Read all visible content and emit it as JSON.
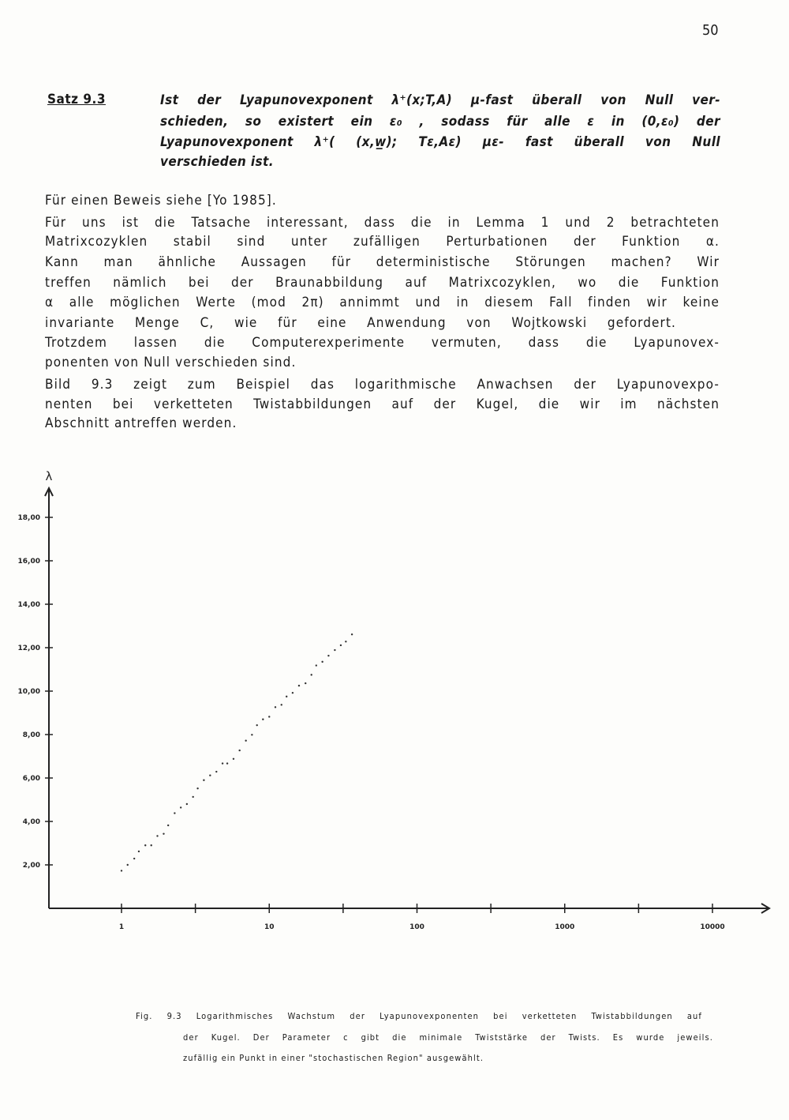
{
  "page_number": "50",
  "theorem": {
    "label": "Satz 9.3",
    "lines": [
      "Ist der Lyapunovexponent λ⁺(x;T,A) μ-fast überall von Null ver-",
      "schieden, so existert ein ε₀ , sodass für alle ε in (0,ε₀) der",
      "Lyapunovexponent λ⁺( (x,w̲); Tε,Aε)  με- fast überall von Null",
      "verschieden ist."
    ]
  },
  "body_lines": [
    "Für einen Beweis siehe [Yo 1985].",
    "Für uns ist die Tatsache interessant, dass die in Lemma 1 und 2 betrachteten",
    "Matrixcozyklen stabil sind unter zufälligen Perturbationen der Funktion α.",
    "Kann man ähnliche Aussagen für deterministische Störungen machen? Wir",
    "treffen nämlich bei der Braunabbildung auf Matrixcozyklen, wo die Funktion",
    "α alle möglichen Werte (mod 2π) annimmt und in diesem Fall finden wir keine",
    "invariante Menge C, wie für eine Anwendung von Wojtkowski gefordert.",
    "Trotzdem lassen die Computerexperimente vermuten, dass die Lyapunovex-",
    "ponenten von Null verschieden sind.",
    "Bild 9.3 zeigt zum Beispiel das logarithmische Anwachsen der Lyapunovexpo-",
    "nenten bei verketteten Twistabbildungen auf der Kugel, die wir im nächsten",
    "Abschnitt antreffen werden."
  ],
  "chart_data": {
    "type": "scatter",
    "ylabel": "λ",
    "xlabel": "",
    "x_scale": "log",
    "xlim": [
      0.55,
      18000
    ],
    "ylim": [
      0,
      19.4
    ],
    "grid": false,
    "x_ticks": [
      "1",
      "10",
      "100",
      "1000",
      "10000"
    ],
    "y_ticks": [
      "2,00",
      "4,00",
      "6,00",
      "8,00",
      "10,00",
      "12,00",
      "14,00",
      "16,00",
      "18,00"
    ],
    "y_tick_values": [
      2,
      4,
      6,
      8,
      10,
      12,
      14,
      16,
      18
    ],
    "x_tick_values": [
      1,
      10,
      100,
      1000,
      10000
    ],
    "points": [
      [
        1.0,
        1.73
      ],
      [
        1.1,
        2.0
      ],
      [
        1.22,
        2.29
      ],
      [
        1.31,
        2.62
      ],
      [
        1.45,
        2.9
      ],
      [
        1.59,
        2.9
      ],
      [
        1.75,
        3.33
      ],
      [
        1.93,
        3.43
      ],
      [
        2.07,
        3.82
      ],
      [
        2.29,
        4.38
      ],
      [
        2.52,
        4.64
      ],
      [
        2.77,
        4.8
      ],
      [
        3.05,
        5.13
      ],
      [
        3.28,
        5.52
      ],
      [
        3.61,
        5.9
      ],
      [
        3.98,
        6.12
      ],
      [
        4.39,
        6.29
      ],
      [
        4.83,
        6.67
      ],
      [
        5.2,
        6.67
      ],
      [
        5.73,
        6.88
      ],
      [
        6.3,
        7.27
      ],
      [
        6.95,
        7.72
      ],
      [
        7.64,
        7.99
      ],
      [
        8.26,
        8.43
      ],
      [
        9.07,
        8.7
      ],
      [
        10.0,
        8.82
      ],
      [
        11.0,
        9.26
      ],
      [
        12.1,
        9.37
      ],
      [
        13.1,
        9.75
      ],
      [
        14.4,
        9.92
      ],
      [
        15.9,
        10.25
      ],
      [
        17.6,
        10.36
      ],
      [
        19.3,
        10.75
      ],
      [
        20.8,
        11.18
      ],
      [
        22.9,
        11.35
      ],
      [
        25.2,
        11.63
      ],
      [
        27.8,
        11.89
      ],
      [
        30.5,
        12.11
      ],
      [
        33.0,
        12.28
      ],
      [
        36.3,
        12.61
      ]
    ],
    "point_color": "#333333",
    "axis_color": "#222222"
  },
  "caption": {
    "lines": [
      "Fig. 9.3 Logarithmisches Wachstum der Lyapunovexponenten bei verketteten Twistabbildungen auf",
      "der Kugel. Der Parameter c gibt die minimale Twiststärke der Twists. Es wurde jeweils.",
      "zufällig ein Punkt in einer \"stochastischen Region\" ausgewählt."
    ]
  }
}
